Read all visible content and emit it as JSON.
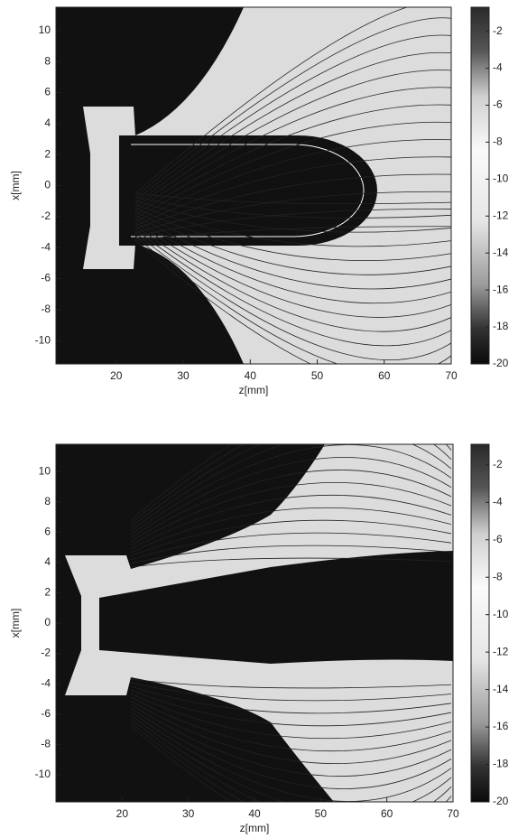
{
  "chart_data": [
    {
      "type": "contour",
      "xlabel": "z[mm]",
      "ylabel": "x[mm]",
      "xlim": [
        11,
        70
      ],
      "ylim": [
        -11.5,
        11.5
      ],
      "xticks": [
        20,
        30,
        40,
        50,
        60,
        70
      ],
      "yticks": [
        -10,
        -8,
        -6,
        -4,
        -2,
        0,
        2,
        4,
        6,
        8,
        10
      ],
      "clim": [
        -20,
        -0.7
      ],
      "cticks": [
        -20,
        -18,
        -16,
        -14,
        -12,
        -10,
        -8,
        -6,
        -4,
        -2
      ]
    },
    {
      "type": "contour",
      "xlabel": "z[mm]",
      "ylabel": "x[mm]",
      "xlim": [
        10,
        70
      ],
      "ylim": [
        -11.8,
        11.8
      ],
      "xticks": [
        20,
        30,
        40,
        50,
        60,
        70
      ],
      "yticks": [
        -10,
        -8,
        -6,
        -4,
        -2,
        0,
        2,
        4,
        6,
        8,
        10
      ],
      "clim": [
        -20,
        -0.9
      ],
      "cticks": [
        -20,
        -18,
        -16,
        -14,
        -12,
        -10,
        -8,
        -6,
        -4,
        -2
      ]
    }
  ]
}
